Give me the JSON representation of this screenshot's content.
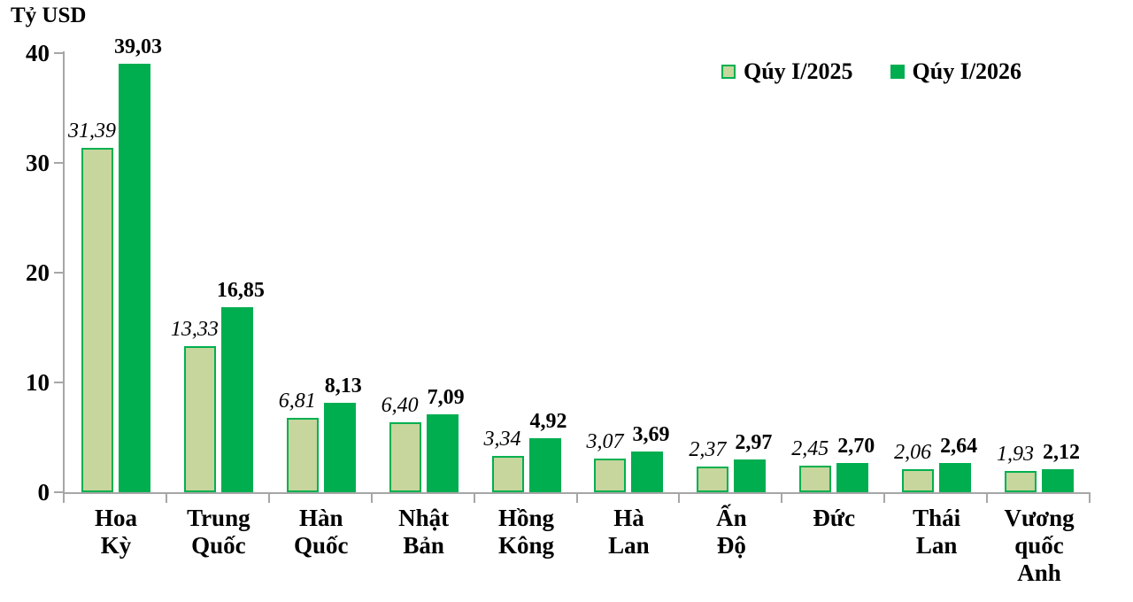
{
  "title": "Tỷ USD",
  "legend": {
    "items": [
      {
        "label": "Qúy I/2025"
      },
      {
        "label": "Qúy I/2026"
      }
    ]
  },
  "chart_data": {
    "type": "bar",
    "title": "",
    "ylabel": "Tỷ USD",
    "xlabel": "",
    "ylim": [
      0,
      40
    ],
    "yticks": [
      "0",
      "10",
      "20",
      "30",
      "40"
    ],
    "grid": false,
    "legend_position": "top-right",
    "axis_color": "#a6a6a6",
    "categories": [
      "Hoa Kỳ",
      "Trung Quốc",
      "Hàn Quốc",
      "Nhật Bản",
      "Hồng Kông",
      "Hà Lan",
      "Ấn Độ",
      "Đức",
      "Thái Lan",
      "Vương quốc Anh"
    ],
    "category_label_lines": [
      [
        "Hoa",
        "Kỳ"
      ],
      [
        "Trung",
        "Quốc"
      ],
      [
        "Hàn",
        "Quốc"
      ],
      [
        "Nhật",
        "Bản"
      ],
      [
        "Hồng",
        "Kông"
      ],
      [
        "Hà",
        "Lan"
      ],
      [
        "Ấn",
        "Độ"
      ],
      [
        "Đức"
      ],
      [
        "Thái",
        "Lan"
      ],
      [
        "Vương",
        "quốc",
        "Anh"
      ]
    ],
    "series": [
      {
        "name": "Qúy I/2025",
        "fill": "#c6d69d",
        "stroke": "#00b050",
        "values": [
          31.39,
          13.33,
          6.81,
          6.4,
          3.34,
          3.07,
          2.37,
          2.45,
          2.06,
          1.93
        ],
        "value_labels": [
          "31,39",
          "13,33",
          "6,81",
          "6,40",
          "3,34",
          "3,07",
          "2,37",
          "2,45",
          "2,06",
          "1,93"
        ]
      },
      {
        "name": "Qúy I/2026",
        "fill": "#00ae50",
        "stroke": "#00ae50",
        "values": [
          39.03,
          16.85,
          8.13,
          7.09,
          4.92,
          3.69,
          2.97,
          2.7,
          2.64,
          2.12
        ],
        "value_labels": [
          "39,03",
          "16,85",
          "8,13",
          "7,09",
          "4,92",
          "3,69",
          "2,97",
          "2,70",
          "2,64",
          "2,12"
        ]
      }
    ]
  }
}
